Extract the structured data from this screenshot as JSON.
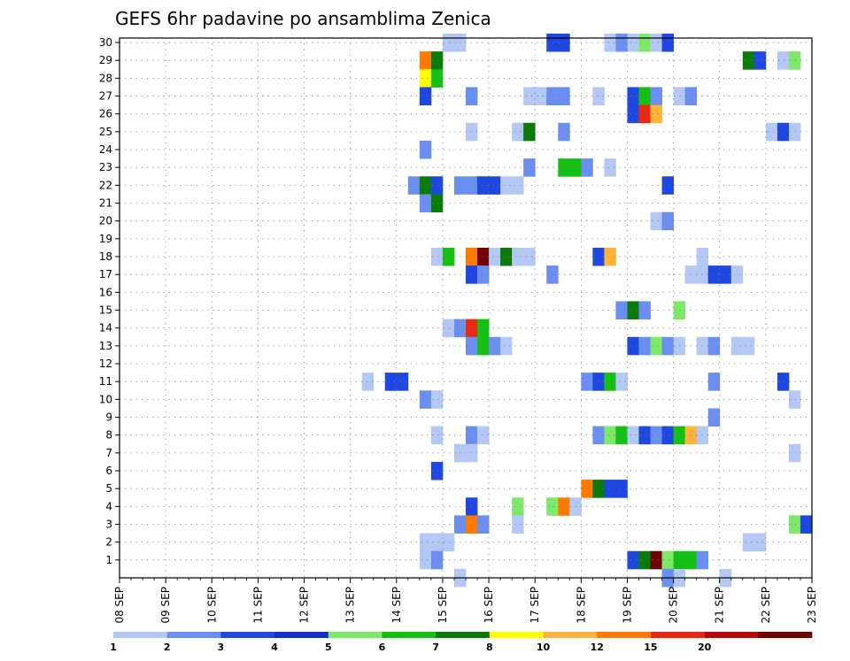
{
  "chart_data": {
    "type": "heatmap",
    "title": "GEFS 6hr padavine po ansamblima Zenica",
    "xlabel": "",
    "ylabel": "",
    "x_start": "08 SEP",
    "x_tick_labels": [
      "08 SEP",
      "09 SEP",
      "10 SEP",
      "11 SEP",
      "12 SEP",
      "13 SEP",
      "14 SEP",
      "15 SEP",
      "16 SEP",
      "17 SEP",
      "18 SEP",
      "19 SEP",
      "20 SEP",
      "21 SEP",
      "22 SEP",
      "23 SEP"
    ],
    "x_steps_per_day": 4,
    "x_step_hours": 6,
    "y_tick_labels": [
      "1",
      "2",
      "3",
      "4",
      "5",
      "6",
      "7",
      "8",
      "9",
      "10",
      "11",
      "12",
      "13",
      "14",
      "15",
      "16",
      "17",
      "18",
      "19",
      "20",
      "21",
      "22",
      "23",
      "24",
      "25",
      "26",
      "27",
      "28",
      "29",
      "30"
    ],
    "ylim": [
      0,
      30
    ],
    "grid": true,
    "legend": {
      "placement": "bottom",
      "labels": [
        "1",
        "2",
        "3",
        "4",
        "5",
        "6",
        "7",
        "8",
        "10",
        "12",
        "15",
        "20"
      ],
      "colors": [
        "#b4c8f5",
        "#6a8ff0",
        "#1f48e0",
        "#1030c8",
        "#7ee868",
        "#13c013",
        "#0a7a0a",
        "#ffff00",
        "#ffb33a",
        "#ff7a00",
        "#e82810",
        "#b40a0a",
        "#6e0000"
      ]
    },
    "level_colors": {
      "1": "#b4c8f5",
      "2": "#6a8ff0",
      "3": "#1f48e0",
      "5": "#7ee868",
      "6": "#13c013",
      "7": "#0a7a0a",
      "8": "#ffff00",
      "9": "#ffb33a",
      "10": "#ff7a00",
      "11": "#e82810",
      "12": "#6e0000"
    },
    "cells_note": "each cell is [member, time_step_from_08SEP_00z, level_index]",
    "cells": [
      [
        30,
        28,
        1
      ],
      [
        30,
        29,
        1
      ],
      [
        30,
        37,
        3
      ],
      [
        30,
        38,
        3
      ],
      [
        30,
        42,
        1
      ],
      [
        30,
        43,
        2
      ],
      [
        30,
        44,
        1
      ],
      [
        30,
        45,
        5
      ],
      [
        30,
        46,
        1
      ],
      [
        30,
        47,
        3
      ],
      [
        29,
        26,
        10
      ],
      [
        29,
        27,
        7
      ],
      [
        29,
        54,
        7
      ],
      [
        29,
        55,
        3
      ],
      [
        29,
        57,
        1
      ],
      [
        29,
        58,
        5
      ],
      [
        28,
        26,
        8
      ],
      [
        28,
        27,
        6
      ],
      [
        27,
        26,
        3
      ],
      [
        27,
        30,
        2
      ],
      [
        27,
        35,
        1
      ],
      [
        27,
        36,
        1
      ],
      [
        27,
        37,
        2
      ],
      [
        27,
        38,
        2
      ],
      [
        27,
        41,
        1
      ],
      [
        27,
        44,
        3
      ],
      [
        27,
        45,
        6
      ],
      [
        27,
        46,
        2
      ],
      [
        27,
        48,
        1
      ],
      [
        27,
        49,
        2
      ],
      [
        26,
        44,
        3
      ],
      [
        26,
        45,
        11
      ],
      [
        26,
        46,
        9
      ],
      [
        25,
        30,
        1
      ],
      [
        25,
        34,
        1
      ],
      [
        25,
        35,
        7
      ],
      [
        25,
        38,
        2
      ],
      [
        25,
        56,
        1
      ],
      [
        25,
        57,
        3
      ],
      [
        25,
        58,
        1
      ],
      [
        24,
        26,
        2
      ],
      [
        23,
        35,
        2
      ],
      [
        23,
        38,
        6
      ],
      [
        23,
        39,
        6
      ],
      [
        23,
        40,
        2
      ],
      [
        23,
        42,
        1
      ],
      [
        22,
        25,
        2
      ],
      [
        22,
        26,
        7
      ],
      [
        22,
        27,
        3
      ],
      [
        22,
        29,
        2
      ],
      [
        22,
        30,
        2
      ],
      [
        22,
        31,
        3
      ],
      [
        22,
        32,
        3
      ],
      [
        22,
        33,
        1
      ],
      [
        22,
        34,
        1
      ],
      [
        22,
        47,
        3
      ],
      [
        21,
        26,
        2
      ],
      [
        21,
        27,
        7
      ],
      [
        20,
        46,
        1
      ],
      [
        20,
        47,
        2
      ],
      [
        18,
        27,
        1
      ],
      [
        18,
        28,
        6
      ],
      [
        18,
        30,
        10
      ],
      [
        18,
        31,
        12
      ],
      [
        18,
        32,
        1
      ],
      [
        18,
        33,
        7
      ],
      [
        18,
        34,
        1
      ],
      [
        18,
        35,
        1
      ],
      [
        18,
        41,
        3
      ],
      [
        18,
        42,
        9
      ],
      [
        18,
        50,
        1
      ],
      [
        17,
        30,
        3
      ],
      [
        17,
        31,
        2
      ],
      [
        17,
        37,
        2
      ],
      [
        17,
        49,
        1
      ],
      [
        17,
        50,
        1
      ],
      [
        17,
        51,
        3
      ],
      [
        17,
        52,
        3
      ],
      [
        17,
        53,
        1
      ],
      [
        15,
        43,
        2
      ],
      [
        15,
        44,
        7
      ],
      [
        15,
        45,
        2
      ],
      [
        15,
        48,
        5
      ],
      [
        14,
        28,
        1
      ],
      [
        14,
        29,
        2
      ],
      [
        14,
        30,
        11
      ],
      [
        14,
        31,
        6
      ],
      [
        13,
        30,
        2
      ],
      [
        13,
        31,
        6
      ],
      [
        13,
        32,
        2
      ],
      [
        13,
        33,
        1
      ],
      [
        13,
        44,
        3
      ],
      [
        13,
        45,
        2
      ],
      [
        13,
        46,
        5
      ],
      [
        13,
        47,
        2
      ],
      [
        13,
        48,
        1
      ],
      [
        13,
        50,
        1
      ],
      [
        13,
        51,
        2
      ],
      [
        13,
        53,
        1
      ],
      [
        13,
        54,
        1
      ],
      [
        11,
        21,
        1
      ],
      [
        11,
        23,
        3
      ],
      [
        11,
        24,
        3
      ],
      [
        11,
        40,
        2
      ],
      [
        11,
        41,
        3
      ],
      [
        11,
        42,
        6
      ],
      [
        11,
        43,
        1
      ],
      [
        11,
        51,
        2
      ],
      [
        11,
        57,
        3
      ],
      [
        10,
        26,
        2
      ],
      [
        10,
        27,
        1
      ],
      [
        10,
        58,
        1
      ],
      [
        9,
        51,
        2
      ],
      [
        8,
        27,
        1
      ],
      [
        8,
        30,
        2
      ],
      [
        8,
        31,
        1
      ],
      [
        8,
        41,
        2
      ],
      [
        8,
        42,
        5
      ],
      [
        8,
        43,
        6
      ],
      [
        8,
        44,
        1
      ],
      [
        8,
        45,
        3
      ],
      [
        8,
        46,
        2
      ],
      [
        8,
        47,
        3
      ],
      [
        8,
        48,
        6
      ],
      [
        8,
        49,
        9
      ],
      [
        8,
        50,
        1
      ],
      [
        7,
        29,
        1
      ],
      [
        7,
        30,
        1
      ],
      [
        7,
        58,
        1
      ],
      [
        6,
        27,
        3
      ],
      [
        5,
        40,
        10
      ],
      [
        5,
        41,
        7
      ],
      [
        5,
        42,
        3
      ],
      [
        5,
        43,
        3
      ],
      [
        4,
        30,
        3
      ],
      [
        4,
        34,
        5
      ],
      [
        4,
        37,
        5
      ],
      [
        4,
        38,
        10
      ],
      [
        4,
        39,
        1
      ],
      [
        3,
        29,
        2
      ],
      [
        3,
        30,
        10
      ],
      [
        3,
        31,
        2
      ],
      [
        3,
        34,
        1
      ],
      [
        3,
        58,
        5
      ],
      [
        3,
        59,
        3
      ],
      [
        2,
        26,
        1
      ],
      [
        2,
        27,
        1
      ],
      [
        2,
        28,
        1
      ],
      [
        2,
        54,
        1
      ],
      [
        2,
        55,
        1
      ],
      [
        1,
        26,
        1
      ],
      [
        1,
        27,
        2
      ],
      [
        1,
        44,
        3
      ],
      [
        1,
        45,
        7
      ],
      [
        1,
        46,
        12
      ],
      [
        1,
        47,
        5
      ],
      [
        1,
        48,
        6
      ],
      [
        1,
        49,
        6
      ],
      [
        1,
        50,
        2
      ],
      [
        0,
        29,
        1
      ],
      [
        0,
        47,
        2
      ],
      [
        0,
        48,
        1
      ],
      [
        0,
        52,
        1
      ]
    ]
  }
}
